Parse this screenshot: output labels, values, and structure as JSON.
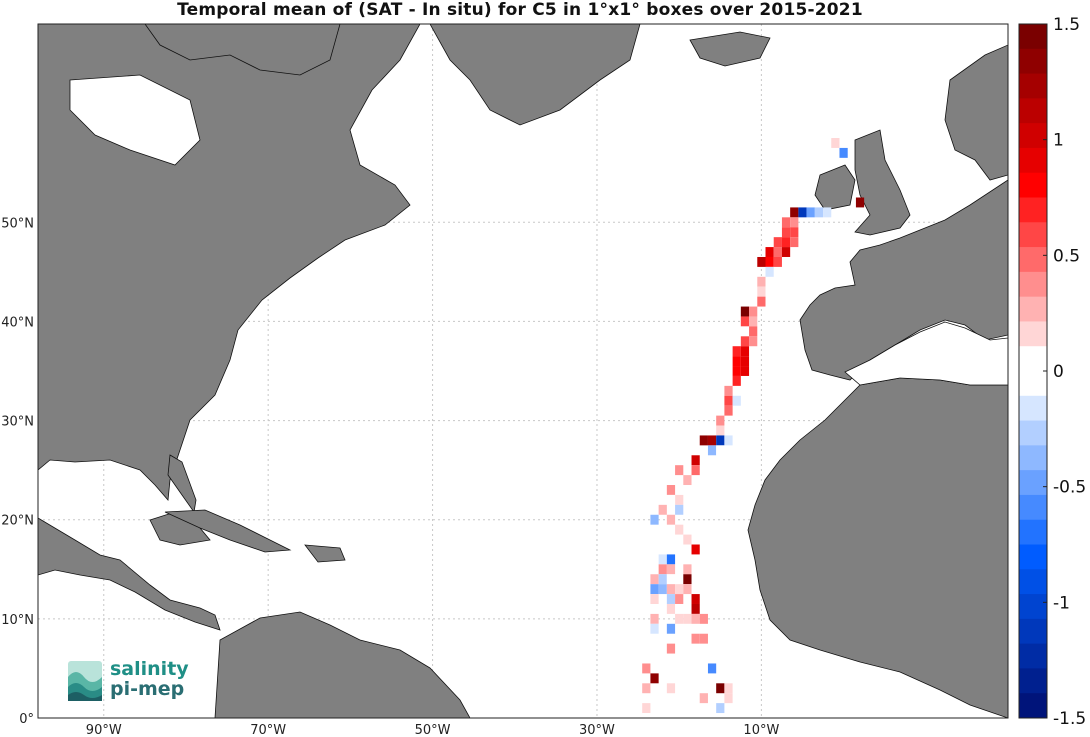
{
  "title": "Temporal mean of (SAT - In situ) for C5 in 1°x1° boxes over 2015-2021",
  "map": {
    "lon_range": [
      -98,
      20
    ],
    "lat_range": [
      0,
      70
    ],
    "lon_ticks": [
      {
        "lon": -90,
        "label": "90°W"
      },
      {
        "lon": -70,
        "label": "70°W"
      },
      {
        "lon": -50,
        "label": "50°W"
      },
      {
        "lon": -30,
        "label": "30°W"
      },
      {
        "lon": -10,
        "label": "10°W"
      }
    ],
    "lat_ticks": [
      {
        "lat": 0,
        "label": "0°"
      },
      {
        "lat": 10,
        "label": "10°N"
      },
      {
        "lat": 20,
        "label": "20°N"
      },
      {
        "lat": 30,
        "label": "30°N"
      },
      {
        "lat": 40,
        "label": "40°N"
      },
      {
        "lat": 50,
        "label": "50°N"
      }
    ],
    "grid": "dashed",
    "land_color": "#808080",
    "ocean_color": "#ffffff"
  },
  "colorbar": {
    "min": -1.5,
    "max": 1.5,
    "ticks": [
      {
        "value": 1.5,
        "label": "1.5"
      },
      {
        "value": 1,
        "label": "1"
      },
      {
        "value": 0.5,
        "label": "0.5"
      },
      {
        "value": 0,
        "label": "0"
      },
      {
        "value": -0.5,
        "label": "-0.5"
      },
      {
        "value": -1,
        "label": "-1"
      },
      {
        "value": -1.5,
        "label": "-1.5"
      }
    ],
    "colors_top_to_bottom": [
      "#7a0000",
      "#8f0000",
      "#a50000",
      "#bb0000",
      "#d00000",
      "#e60000",
      "#ff0000",
      "#ff2222",
      "#ff4646",
      "#ff6a6a",
      "#ff8e8e",
      "#ffb2b2",
      "#ffd6d6",
      "#ffffff",
      "#ffffff",
      "#d6e6ff",
      "#b2cfff",
      "#8eb8ff",
      "#6aa1ff",
      "#468aff",
      "#2273ff",
      "#005cff",
      "#0050e6",
      "#0044d0",
      "#0038bb",
      "#002ca5",
      "#00208f",
      "#00147a"
    ]
  },
  "logo": {
    "line1": "salinity",
    "line2": "pi-mep"
  },
  "chart_data": {
    "type": "heatmap",
    "title": "Temporal mean of (SAT - In situ) for C5 in 1°x1° boxes over 2015-2021",
    "xlabel": "",
    "ylabel": "",
    "x_unit": "longitude",
    "y_unit": "latitude",
    "colorbar_range": [
      -1.5,
      1.5
    ],
    "cells": [
      [
        -1,
        58,
        0.2
      ],
      [
        0,
        57,
        -0.6
      ],
      [
        -8,
        51,
        0.1
      ],
      [
        -6,
        51,
        1.3
      ],
      [
        -5,
        51,
        -1.1
      ],
      [
        -4,
        51,
        -0.5
      ],
      [
        -3,
        51,
        -0.3
      ],
      [
        -2,
        51,
        -0.2
      ],
      [
        2,
        52,
        1.3
      ],
      [
        -7,
        50,
        0.5
      ],
      [
        -6,
        50,
        0.4
      ],
      [
        -7,
        49,
        0.6
      ],
      [
        -6,
        49,
        0.6
      ],
      [
        -8,
        48,
        0.6
      ],
      [
        -7,
        48,
        0.7
      ],
      [
        -6,
        48,
        0.5
      ],
      [
        -9,
        47,
        0.9
      ],
      [
        -8,
        47,
        0.5
      ],
      [
        -7,
        47,
        1.0
      ],
      [
        -10,
        46,
        1.1
      ],
      [
        -9,
        46,
        0.8
      ],
      [
        -8,
        46,
        0.6
      ],
      [
        -9,
        45,
        -0.2
      ],
      [
        -10,
        44,
        0.3
      ],
      [
        -10,
        43,
        0.2
      ],
      [
        -10,
        42,
        0.5
      ],
      [
        -12,
        41,
        1.4
      ],
      [
        -11,
        41,
        0.4
      ],
      [
        -12,
        40,
        0.6
      ],
      [
        -11,
        40,
        0.3
      ],
      [
        -12,
        39,
        0.1
      ],
      [
        -11,
        39,
        0.5
      ],
      [
        -12,
        38,
        0.6
      ],
      [
        -11,
        38,
        0.4
      ],
      [
        -13,
        37,
        0.7
      ],
      [
        -12,
        37,
        0.9
      ],
      [
        -13,
        36,
        0.8
      ],
      [
        -12,
        36,
        0.9
      ],
      [
        -13,
        35,
        0.8
      ],
      [
        -12,
        35,
        0.9
      ],
      [
        -13,
        34,
        0.7
      ],
      [
        -14,
        33,
        0.4
      ],
      [
        -14,
        32,
        0.6
      ],
      [
        -13,
        32,
        -0.2
      ],
      [
        -14,
        31,
        0.5
      ],
      [
        -15,
        30,
        0.4
      ],
      [
        -15,
        29,
        0.2
      ],
      [
        -17,
        28,
        1.3
      ],
      [
        -16,
        28,
        1.2
      ],
      [
        -15,
        28,
        -1.1
      ],
      [
        -14,
        28,
        -0.2
      ],
      [
        -16,
        27,
        -0.4
      ],
      [
        -15,
        27,
        0.1
      ],
      [
        -18,
        26,
        1.0
      ],
      [
        -18,
        25,
        0.5
      ],
      [
        -20,
        25,
        0.4
      ],
      [
        -19,
        24,
        0.3
      ],
      [
        -21,
        23,
        0.4
      ],
      [
        -20,
        22,
        0.2
      ],
      [
        -21,
        22,
        0.1
      ],
      [
        -22,
        21,
        0.3
      ],
      [
        -20,
        21,
        -0.3
      ],
      [
        -21,
        20,
        0.3
      ],
      [
        -23,
        20,
        -0.4
      ],
      [
        -20,
        19,
        0.2
      ],
      [
        -19,
        18,
        0.2
      ],
      [
        -18,
        17,
        0.9
      ],
      [
        -22,
        16,
        -0.2
      ],
      [
        -21,
        16,
        -0.7
      ],
      [
        -22,
        15,
        0.4
      ],
      [
        -21,
        15,
        0.3
      ],
      [
        -19,
        15,
        0.3
      ],
      [
        -23,
        14,
        0.3
      ],
      [
        -22,
        14,
        -0.3
      ],
      [
        -21,
        14,
        0.1
      ],
      [
        -19,
        14,
        1.4
      ],
      [
        -23,
        13,
        -0.5
      ],
      [
        -22,
        13,
        -0.4
      ],
      [
        -21,
        13,
        0.3
      ],
      [
        -20,
        13,
        0.2
      ],
      [
        -19,
        13,
        0.3
      ],
      [
        -23,
        12,
        0.2
      ],
      [
        -21,
        12,
        -0.3
      ],
      [
        -20,
        12,
        0.4
      ],
      [
        -18,
        12,
        1.0
      ],
      [
        -22,
        11,
        0.1
      ],
      [
        -21,
        11,
        0.2
      ],
      [
        -20,
        11,
        0.1
      ],
      [
        -18,
        11,
        1.1
      ],
      [
        -23,
        10,
        0.3
      ],
      [
        -20,
        10,
        0.2
      ],
      [
        -19,
        10,
        0.2
      ],
      [
        -18,
        10,
        0.3
      ],
      [
        -17,
        10,
        0.4
      ],
      [
        -23,
        9,
        -0.2
      ],
      [
        -21,
        9,
        -0.5
      ],
      [
        -18,
        8,
        0.4
      ],
      [
        -17,
        8,
        0.4
      ],
      [
        -21,
        7,
        0.4
      ],
      [
        -24,
        5,
        0.4
      ],
      [
        -16,
        5,
        -0.6
      ],
      [
        -23,
        4,
        1.3
      ],
      [
        -24,
        3,
        0.3
      ],
      [
        -21,
        3,
        0.2
      ],
      [
        -15,
        3,
        1.4
      ],
      [
        -14,
        3,
        0.2
      ],
      [
        -23,
        2,
        0.1
      ],
      [
        -20,
        2,
        -0.1
      ],
      [
        -17,
        2,
        0.3
      ],
      [
        -14,
        2,
        0.2
      ],
      [
        -24,
        1,
        0.2
      ],
      [
        -15,
        1,
        -0.3
      ]
    ]
  }
}
